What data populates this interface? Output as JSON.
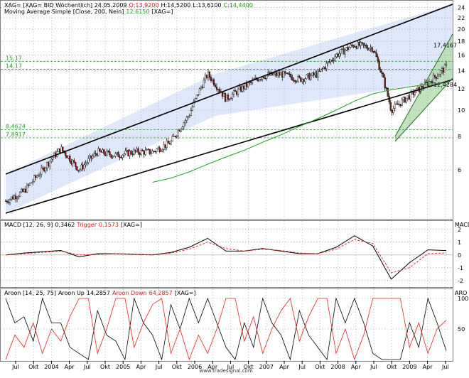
{
  "panels": {
    "price": {
      "legend_line1": {
        "prefix": "XAG= [XAG= BID Wöchentlich] 24.05.2009",
        "open": "O:13,9200",
        "high": "H:14,5200",
        "low": "L:13,6100",
        "close": "C:14,4400"
      },
      "legend_line2": {
        "label": "Moving Average Simple [Close, 200, Nein]",
        "value": "12,6150",
        "suffix": "[XAG=]"
      },
      "right_ticks": [
        "24",
        "22",
        "20",
        "18",
        "16",
        "14",
        "12",
        "10",
        "8",
        "6"
      ],
      "level_labels": [
        "15,17",
        "14,17",
        "8,4624",
        "7,8917"
      ],
      "channel_labels": [
        "17,4167",
        "12,4284"
      ]
    },
    "macd": {
      "label": "MACD [12, 26, 9]",
      "value": "0,3462",
      "trigger_label": "Trigger",
      "trigger_value": "0,1573",
      "suffix": "[XAG=]",
      "right_title": "MACD",
      "right_ticks": [
        "2",
        "1",
        "0",
        "-1",
        "-2"
      ]
    },
    "aroon": {
      "label": "Aroon [14, 25, 75]",
      "up_label": "Aroon Up",
      "up_value": "14,2857",
      "down_label": "Aroon Down",
      "down_value": "64,2857",
      "suffix": "[XAG=]",
      "right_title": "ARO",
      "right_ticks": [
        "100",
        "50"
      ]
    }
  },
  "x_axis": {
    "labels": [
      "Jul",
      "Okt",
      "2004",
      "Apr",
      "Jul",
      "Okt",
      "2005",
      "Apr",
      "Jul",
      "Okt",
      "2006",
      "Apr",
      "Jul",
      "Okt",
      "2007",
      "Apr",
      "Jul",
      "Okt",
      "2008",
      "Apr",
      "Jul",
      "Okt",
      "2009",
      "Apr",
      "Jul"
    ]
  },
  "watermark": "www.tradesignal.com",
  "colors": {
    "panel_bg": "#ffffff",
    "grid": "#808080",
    "candle_up": "#ffffff",
    "candle_down": "#8b1a1a",
    "channel_fill": "#dfe8fa",
    "green_channel_fill": "#b7dcb2",
    "ma_line": "#22a022",
    "level_line": "#2e9e2e",
    "macd_line": "#000000",
    "trigger_line": "#e03030",
    "aroon_up": "#000000",
    "aroon_down": "#e02020",
    "frame": "#808080"
  },
  "chart_data": [
    {
      "type": "line",
      "title": "XAG= BID Wöchentlich (candlestick)",
      "x": [
        "2003-07",
        "2003-10",
        "2004-01",
        "2004-04",
        "2004-07",
        "2004-10",
        "2005-01",
        "2005-04",
        "2005-07",
        "2005-10",
        "2006-01",
        "2006-04",
        "2006-07",
        "2006-10",
        "2007-01",
        "2007-04",
        "2007-07",
        "2007-10",
        "2008-01",
        "2008-04",
        "2008-07",
        "2008-10",
        "2009-01",
        "2009-04",
        "2009-05"
      ],
      "series": [
        {
          "name": "XAG=",
          "values": [
            4.6,
            5.0,
            6.0,
            7.2,
            6.0,
            7.0,
            6.8,
            7.0,
            7.0,
            7.6,
            9.6,
            13.6,
            11.0,
            12.2,
            13.4,
            13.6,
            13.0,
            13.6,
            16.0,
            17.5,
            17.0,
            10.0,
            11.3,
            12.6,
            14.44
          ]
        },
        {
          "name": "Moving Average Simple",
          "values": [
            null,
            null,
            null,
            null,
            null,
            null,
            null,
            null,
            5.4,
            5.6,
            5.9,
            6.3,
            6.7,
            7.1,
            7.6,
            8.1,
            8.7,
            9.3,
            10.0,
            10.8,
            11.5,
            11.9,
            12.2,
            12.5,
            12.615
          ]
        }
      ],
      "ylim": [
        4,
        25
      ],
      "yscale": "log",
      "levels": [
        15.17,
        14.17,
        8.4624,
        7.8917
      ],
      "channel": {
        "upper_end": 25.5,
        "lower_end": 13.0
      },
      "rising_channel": {
        "upper_end": 17.4167,
        "lower_end": 12.4284
      }
    },
    {
      "type": "line",
      "title": "MACD [12, 26, 9]",
      "x": [
        "2003-07",
        "2003-10",
        "2004-01",
        "2004-04",
        "2004-07",
        "2004-10",
        "2005-01",
        "2005-04",
        "2005-07",
        "2005-10",
        "2006-01",
        "2006-04",
        "2006-07",
        "2006-10",
        "2007-01",
        "2007-04",
        "2007-07",
        "2007-10",
        "2008-01",
        "2008-04",
        "2008-07",
        "2008-10",
        "2009-01",
        "2009-04",
        "2009-05"
      ],
      "series": [
        {
          "name": "MACD",
          "values": [
            0.0,
            0.15,
            0.25,
            0.35,
            -0.15,
            0.1,
            0.1,
            0.05,
            0.0,
            0.2,
            0.6,
            1.3,
            0.3,
            0.3,
            0.5,
            0.3,
            0.1,
            0.1,
            0.6,
            1.5,
            0.7,
            -1.9,
            -0.6,
            0.4,
            0.3462
          ]
        },
        {
          "name": "Trigger",
          "values": [
            0.0,
            0.1,
            0.2,
            0.3,
            0.0,
            0.05,
            0.1,
            0.05,
            0.0,
            0.15,
            0.45,
            1.0,
            0.5,
            0.3,
            0.45,
            0.35,
            0.15,
            0.1,
            0.45,
            1.2,
            0.9,
            -1.4,
            -1.0,
            0.1,
            0.1573
          ]
        }
      ],
      "ylim": [
        -2.4,
        2.6
      ]
    },
    {
      "type": "line",
      "title": "Aroon [14, 25, 75]",
      "x": [
        "2003-07",
        "2003-10",
        "2004-01",
        "2004-04",
        "2004-07",
        "2004-10",
        "2005-01",
        "2005-04",
        "2005-07",
        "2005-10",
        "2006-01",
        "2006-04",
        "2006-07",
        "2006-10",
        "2007-01",
        "2007-04",
        "2007-07",
        "2007-10",
        "2008-01",
        "2008-04",
        "2008-07",
        "2008-10",
        "2009-01",
        "2009-04",
        "2009-05"
      ],
      "series": [
        {
          "name": "Aroon Up",
          "values": [
            100,
            70,
            100,
            60,
            10,
            80,
            30,
            100,
            40,
            90,
            100,
            100,
            20,
            60,
            100,
            40,
            80,
            20,
            100,
            100,
            10,
            0,
            60,
            100,
            14.2857
          ]
        },
        {
          "name": "Aroon Down",
          "values": [
            0,
            20,
            10,
            30,
            100,
            10,
            100,
            20,
            90,
            10,
            0,
            10,
            100,
            30,
            10,
            80,
            30,
            100,
            10,
            0,
            100,
            100,
            20,
            10,
            64.2857
          ]
        }
      ],
      "ylim": [
        0,
        100
      ]
    }
  ]
}
